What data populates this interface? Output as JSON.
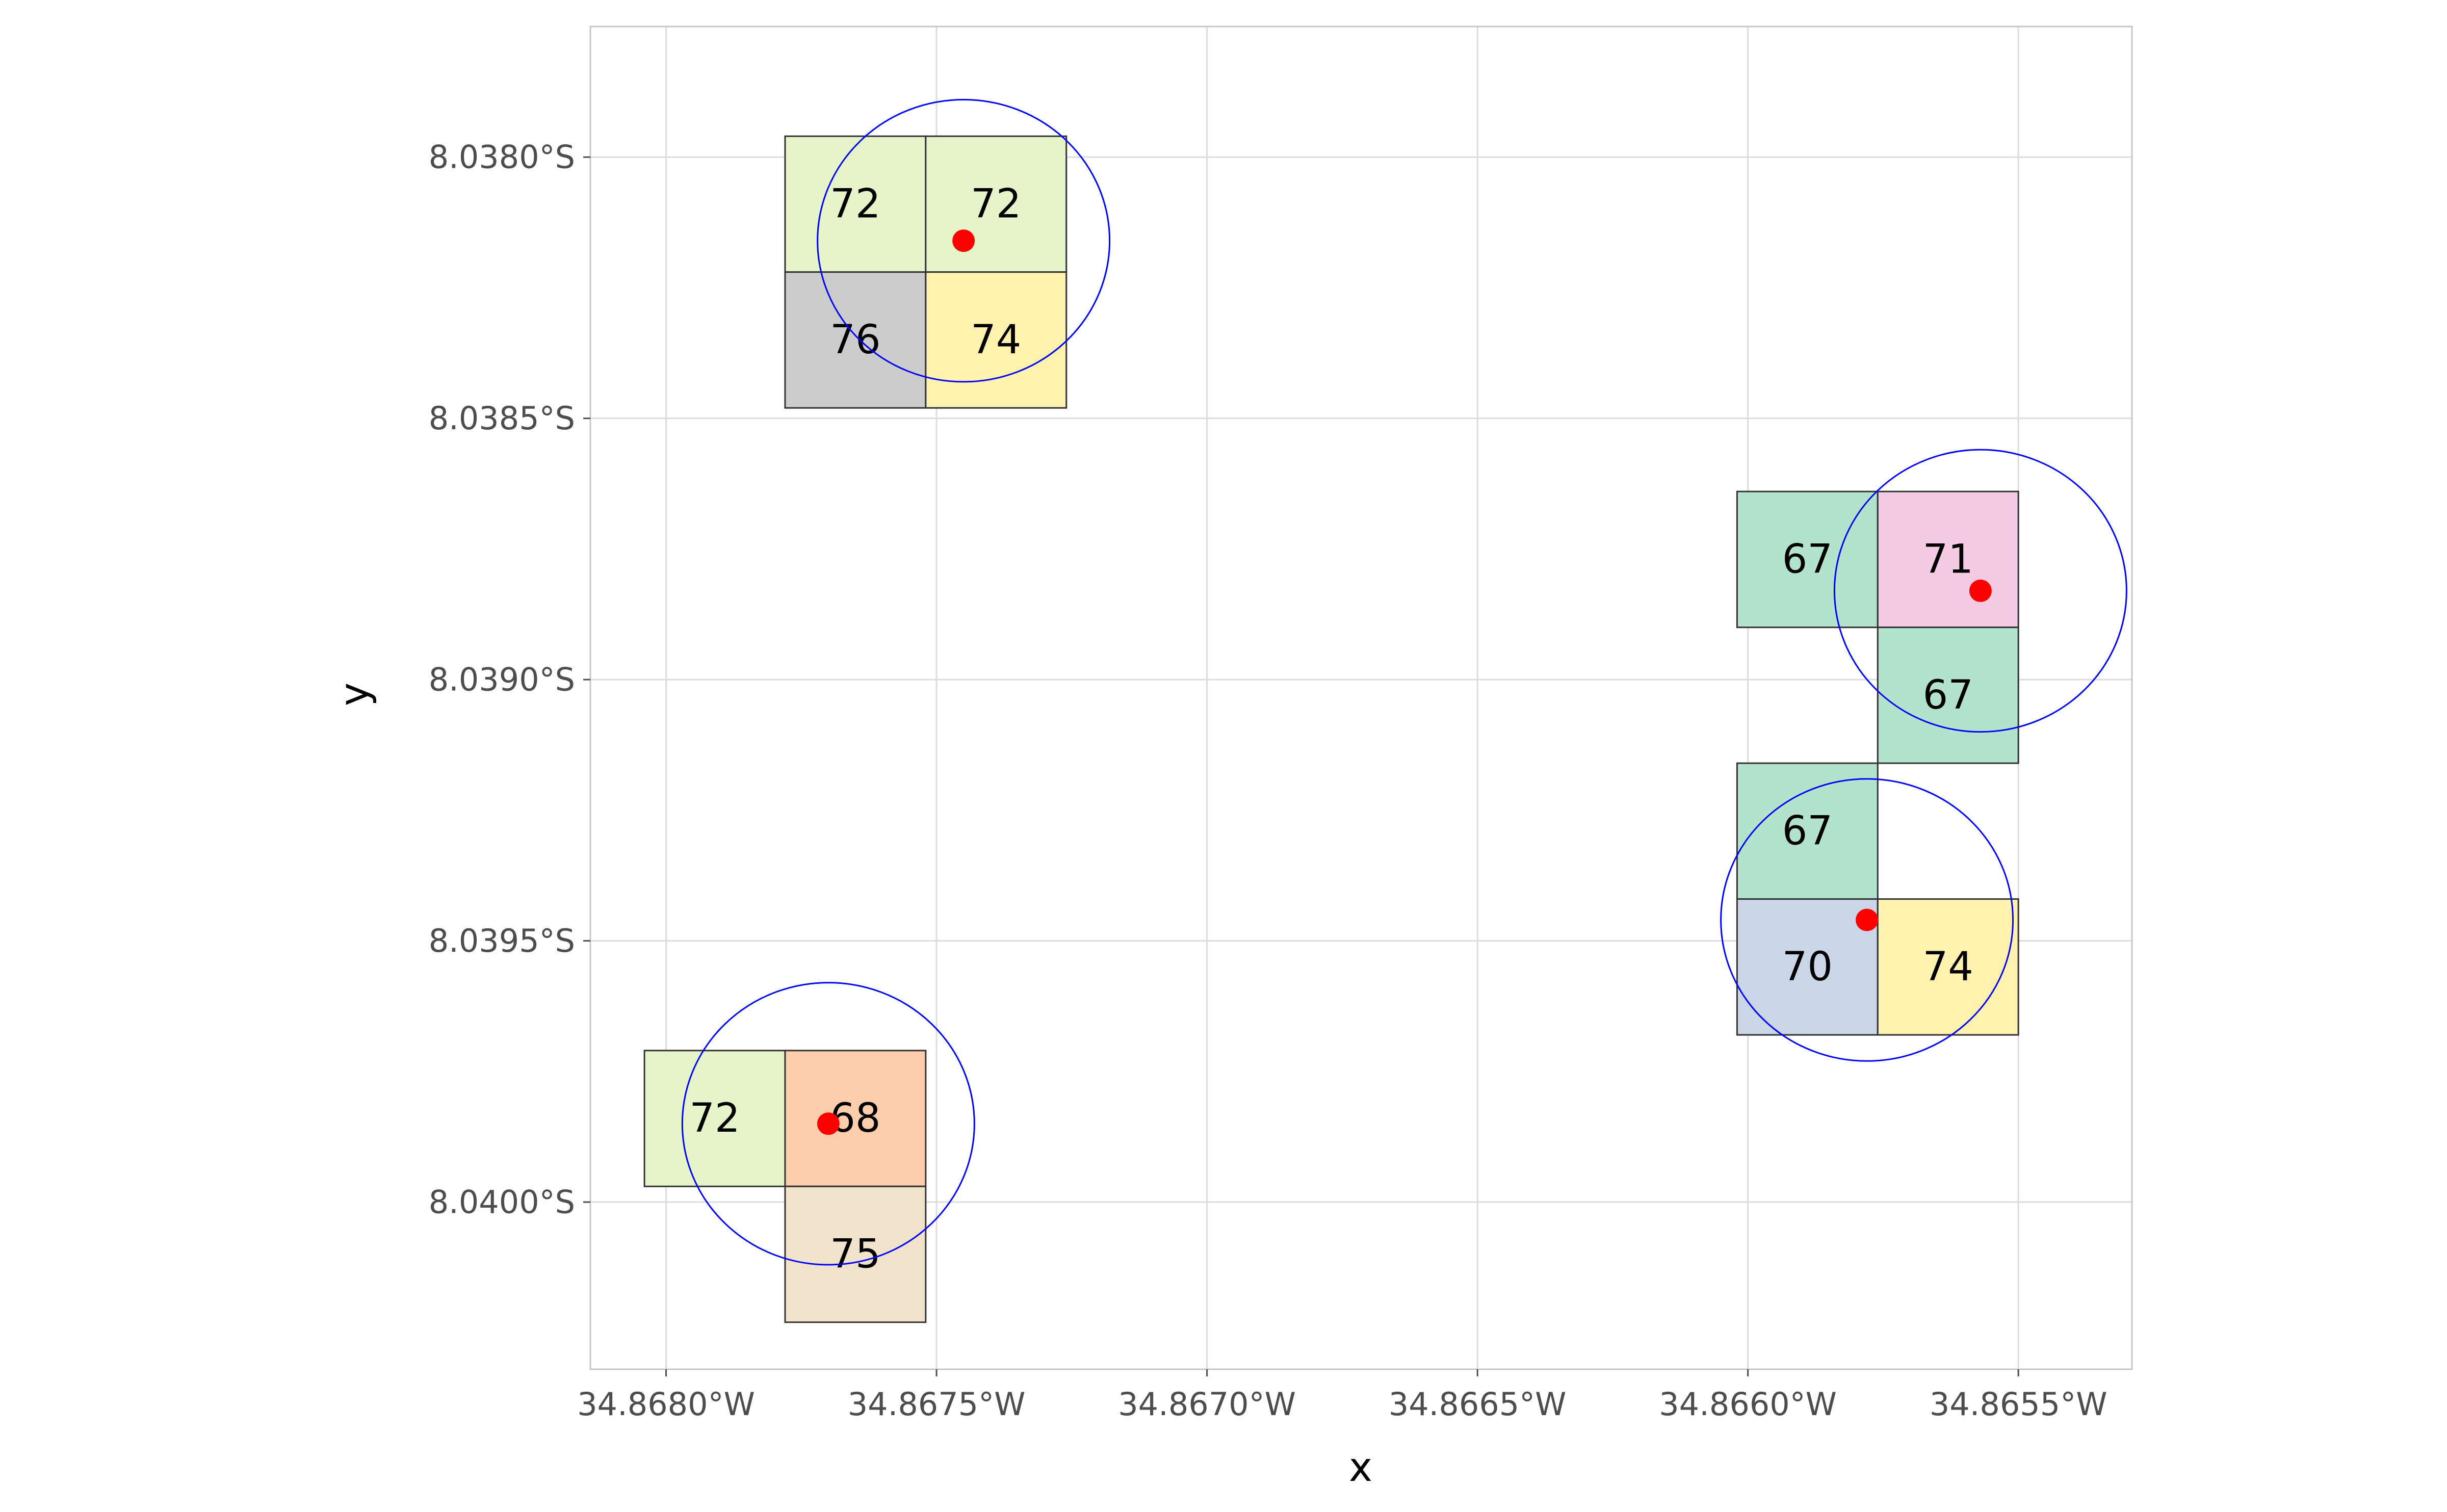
{
  "chart_data": {
    "type": "map",
    "xlabel": "x",
    "ylabel": "y",
    "grid": true,
    "legend": "none",
    "xlim": [
      -34.86814,
      -34.86529
    ],
    "ylim": [
      -8.04032,
      -8.03775
    ],
    "x_ticks": [
      {
        "value": -34.868,
        "label": "34.8680°W"
      },
      {
        "value": -34.8675,
        "label": "34.8675°W"
      },
      {
        "value": -34.867,
        "label": "34.8670°W"
      },
      {
        "value": -34.8665,
        "label": "34.8665°W"
      },
      {
        "value": -34.866,
        "label": "34.8660°W"
      },
      {
        "value": -34.8655,
        "label": "34.8655°W"
      }
    ],
    "y_ticks": [
      {
        "value": -8.038,
        "label": "8.0380°S"
      },
      {
        "value": -8.0385,
        "label": "8.0385°S"
      },
      {
        "value": -8.039,
        "label": "8.0390°S"
      },
      {
        "value": -8.0395,
        "label": "8.0395°S"
      },
      {
        "value": -8.04,
        "label": "8.0400°S"
      }
    ],
    "cell_size": 0.00026,
    "cells": [
      {
        "x": -34.86765,
        "y": -8.03809,
        "value": "72",
        "color": "#e6f5c9"
      },
      {
        "x": -34.86739,
        "y": -8.03809,
        "value": "72",
        "color": "#e6f5c9"
      },
      {
        "x": -34.86765,
        "y": -8.03835,
        "value": "76",
        "color": "#cccccc"
      },
      {
        "x": -34.86739,
        "y": -8.03835,
        "value": "74",
        "color": "#fff2ae"
      },
      {
        "x": -34.86589,
        "y": -8.03877,
        "value": "67",
        "color": "#b3e2cd"
      },
      {
        "x": -34.86563,
        "y": -8.03877,
        "value": "71",
        "color": "#f4cae4"
      },
      {
        "x": -34.86563,
        "y": -8.03903,
        "value": "67",
        "color": "#b3e2cd"
      },
      {
        "x": -34.86589,
        "y": -8.03929,
        "value": "67",
        "color": "#b3e2cd"
      },
      {
        "x": -34.86589,
        "y": -8.03955,
        "value": "70",
        "color": "#cbd5e8"
      },
      {
        "x": -34.86563,
        "y": -8.03955,
        "value": "74",
        "color": "#fff2ae"
      },
      {
        "x": -34.86791,
        "y": -8.03984,
        "value": "72",
        "color": "#e6f5c9"
      },
      {
        "x": -34.86765,
        "y": -8.03984,
        "value": "68",
        "color": "#fdcdac"
      },
      {
        "x": -34.86765,
        "y": -8.0401,
        "value": "75",
        "color": "#f1e2cc"
      }
    ],
    "points": [
      {
        "x": -34.86745,
        "y": -8.03816
      },
      {
        "x": -34.86557,
        "y": -8.03883
      },
      {
        "x": -34.86578,
        "y": -8.03946
      },
      {
        "x": -34.8677,
        "y": -8.03985
      }
    ],
    "buffer_radius": 0.00027,
    "point_color": "#ff0000",
    "buffer_color": "#0000ff"
  }
}
